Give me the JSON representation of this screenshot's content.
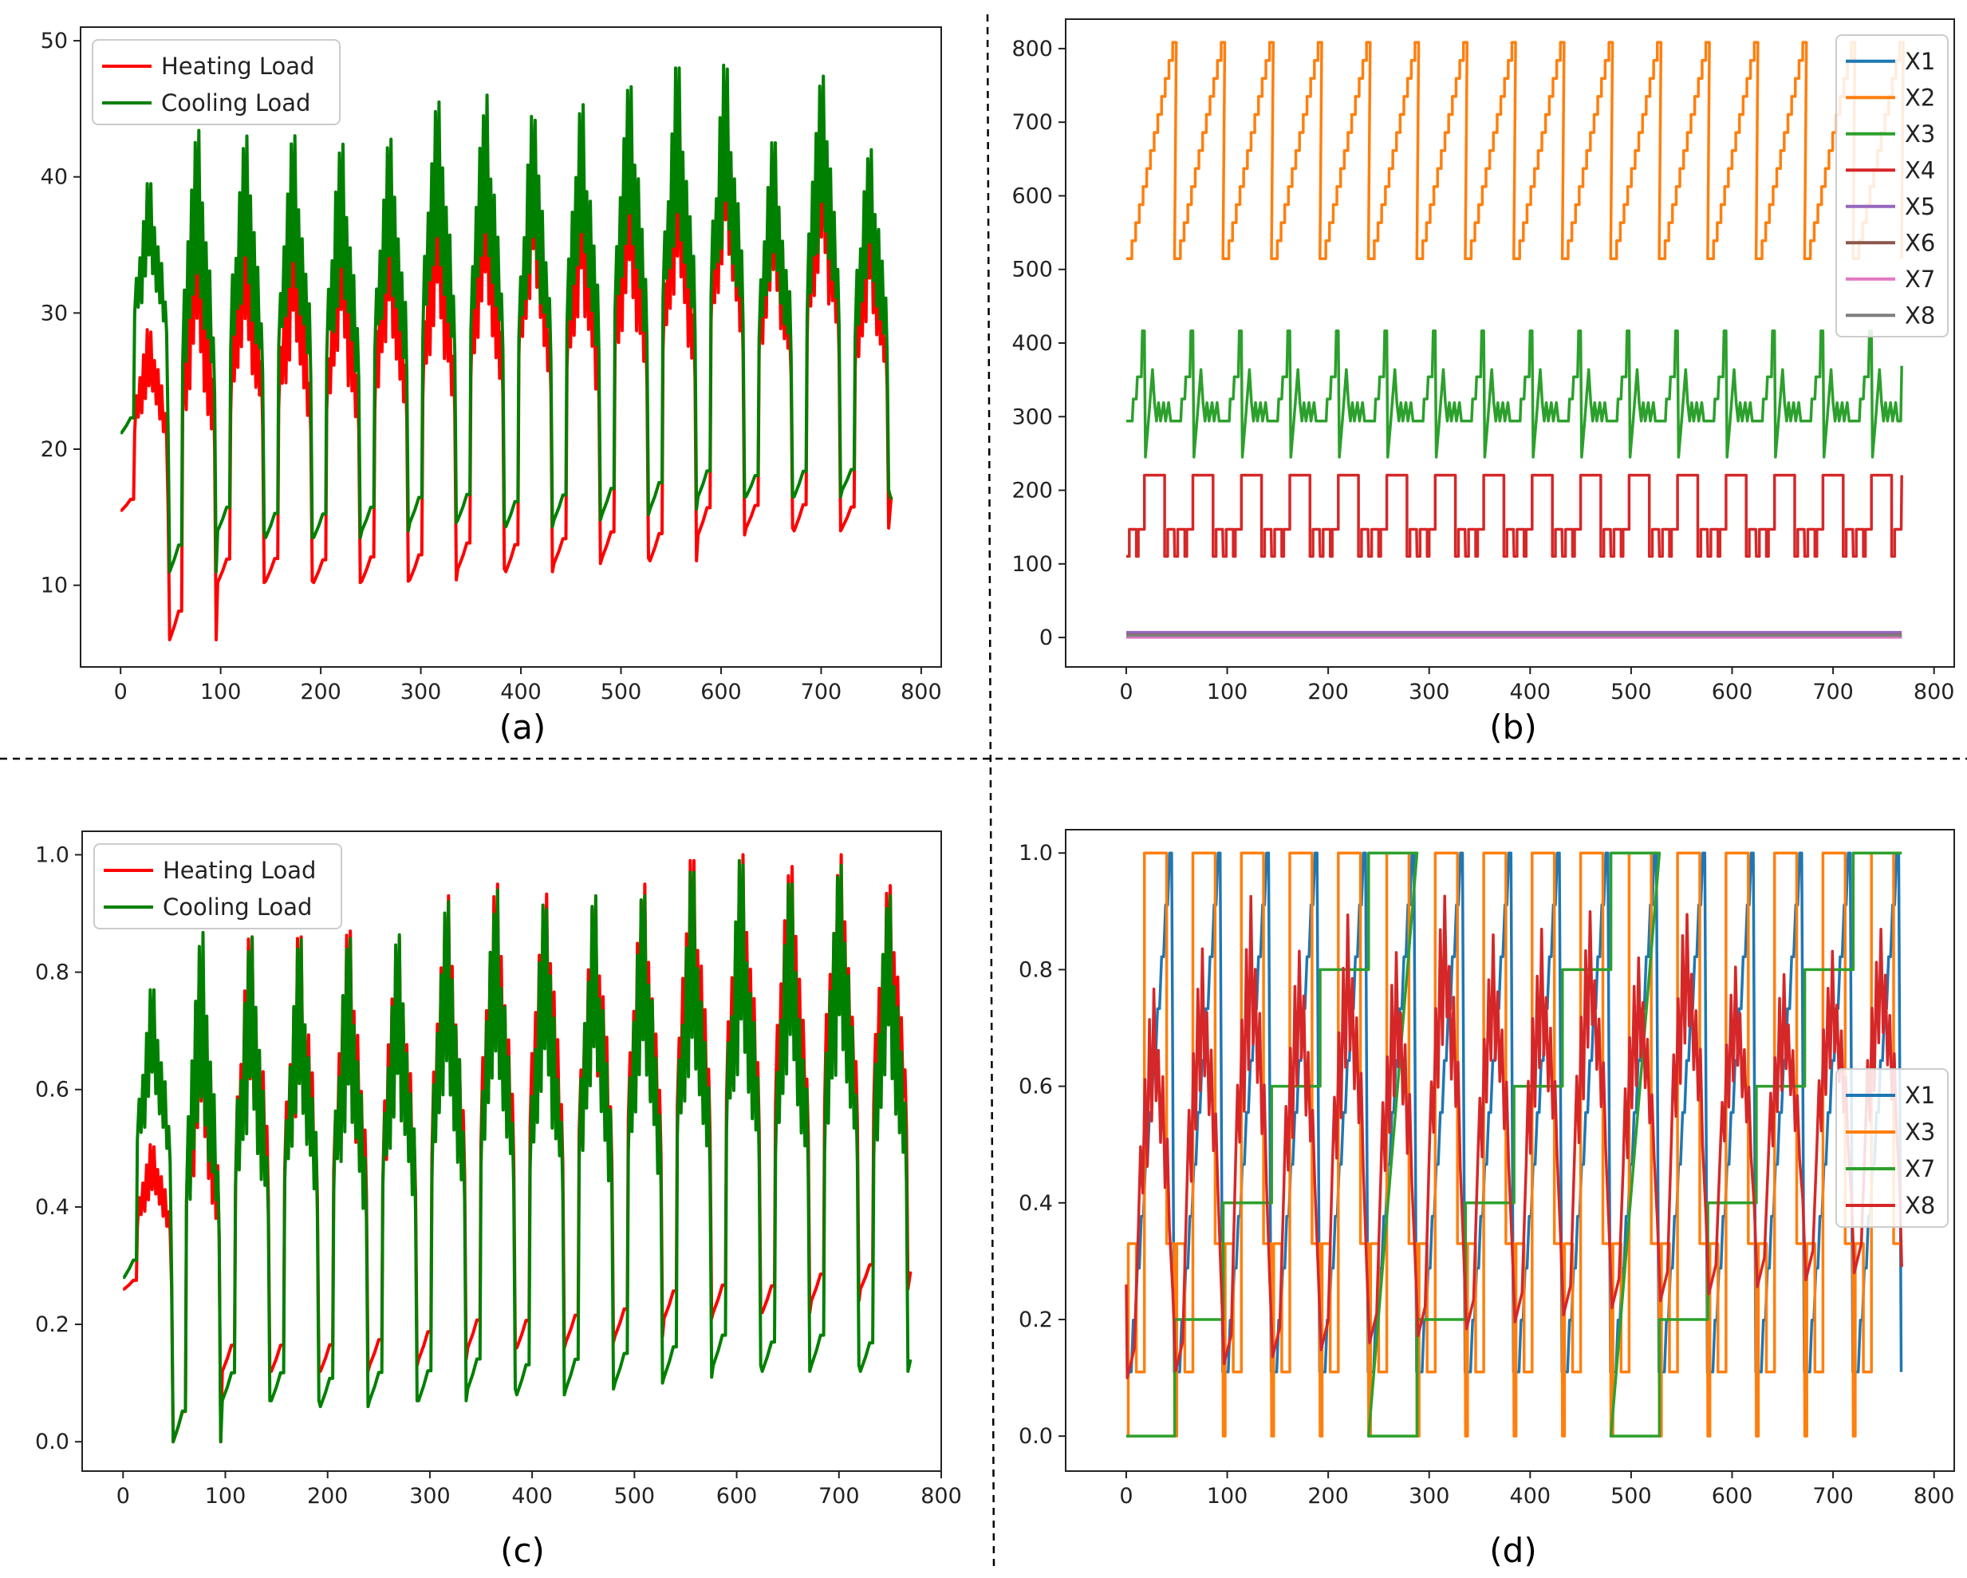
{
  "figure": {
    "captions": {
      "a": "(a)",
      "b": "(b)",
      "c": "(c)",
      "d": "(d)"
    }
  },
  "chart_data": [
    {
      "id": "a",
      "type": "line",
      "caption": "(a)",
      "xlim": [
        -40,
        820
      ],
      "ylim": [
        4,
        51
      ],
      "xticks": [
        0,
        100,
        200,
        300,
        400,
        500,
        600,
        700,
        800
      ],
      "yticks": [
        10,
        20,
        30,
        40,
        50
      ],
      "legend": "top-left",
      "cycles": 16,
      "series": [
        {
          "name": "Heating Load",
          "color": "#ff0000",
          "base": [
            15.5,
            6.0,
            10.2,
            10.3,
            10.2,
            10.3,
            10.4,
            11.2,
            11.0,
            11.6,
            12.0,
            11.8,
            13.7,
            14.2,
            14.0,
            14.2
          ],
          "peak": [
            29.0,
            41.0,
            39.0,
            38.0,
            38.0,
            40.0,
            41.0,
            43.0,
            44.0,
            42.0,
            44.0,
            45.0,
            47.0,
            42.0,
            46.0,
            40.0
          ],
          "end": 16.5
        },
        {
          "name": "Cooling Load",
          "color": "#008000",
          "base": [
            21.2,
            11.0,
            14.0,
            13.5,
            13.5,
            14.0,
            14.6,
            14.8,
            14.3,
            14.8,
            15.2,
            15.6,
            16.5,
            16.5,
            16.5,
            17.0
          ],
          "peak": [
            39.5,
            43.5,
            43.0,
            43.2,
            42.5,
            43.0,
            45.5,
            46.0,
            45.0,
            45.3,
            47.0,
            48.0,
            48.2,
            42.5,
            47.7,
            42.0
          ],
          "end": 16.3
        }
      ]
    },
    {
      "id": "b",
      "type": "line",
      "caption": "(b)",
      "xlim": [
        -60,
        820
      ],
      "ylim": [
        -40,
        840
      ],
      "xticks": [
        0,
        100,
        200,
        300,
        400,
        500,
        600,
        700,
        800
      ],
      "yticks": [
        0,
        100,
        200,
        300,
        400,
        500,
        600,
        700,
        800
      ],
      "legend": "top-right",
      "cycles": 16,
      "series": [
        {
          "name": "X1",
          "color": "#1f77b4",
          "value": 0.8
        },
        {
          "name": "X2",
          "color": "#ff7f0e",
          "min": 514.5,
          "max": 808.5,
          "shape": "sawtooth"
        },
        {
          "name": "X3",
          "color": "#2ca02c",
          "min": 245,
          "mid": 294,
          "max": 416.5,
          "shape": "spiky"
        },
        {
          "name": "X4",
          "color": "#d62728",
          "min": 110.25,
          "mid": 147,
          "max": 220.5,
          "shape": "step"
        },
        {
          "name": "X5",
          "color": "#9467bd",
          "value": 7
        },
        {
          "name": "X6",
          "color": "#8c564b",
          "value": 3.5
        },
        {
          "name": "X7",
          "color": "#e377c2",
          "value": 0.25
        },
        {
          "name": "X8",
          "color": "#7f7f7f",
          "value": 2.8
        }
      ]
    },
    {
      "id": "c",
      "type": "line",
      "caption": "(c)",
      "xlim": [
        -40,
        800
      ],
      "ylim": [
        -0.05,
        1.04
      ],
      "xticks": [
        0,
        100,
        200,
        300,
        400,
        500,
        600,
        700,
        800
      ],
      "yticks": [
        0.0,
        0.2,
        0.4,
        0.6,
        0.8,
        1.0
      ],
      "legend": "top-left",
      "cycles": 16,
      "series": [
        {
          "name": "Heating Load",
          "color": "#ff0000",
          "base": [
            0.26,
            0.0,
            0.12,
            0.12,
            0.12,
            0.13,
            0.14,
            0.16,
            0.16,
            0.17,
            0.18,
            0.21,
            0.22,
            0.22,
            0.24,
            0.26
          ],
          "peak": [
            0.51,
            0.86,
            0.86,
            0.86,
            0.87,
            0.86,
            0.93,
            0.95,
            0.94,
            0.93,
            0.95,
            0.99,
            1.0,
            0.98,
            1.0,
            0.95
          ],
          "end": 0.29
        },
        {
          "name": "Cooling Load",
          "color": "#008000",
          "base": [
            0.28,
            0.0,
            0.07,
            0.07,
            0.06,
            0.07,
            0.07,
            0.09,
            0.08,
            0.09,
            0.1,
            0.11,
            0.13,
            0.12,
            0.13,
            0.12
          ],
          "peak": [
            0.77,
            0.87,
            0.86,
            0.86,
            0.86,
            0.87,
            0.92,
            0.94,
            0.93,
            0.93,
            0.94,
            0.97,
            0.99,
            0.95,
            0.99,
            0.93
          ],
          "end": 0.14
        }
      ]
    },
    {
      "id": "d",
      "type": "line",
      "caption": "(d)",
      "xlim": [
        -60,
        820
      ],
      "ylim": [
        -0.06,
        1.04
      ],
      "xticks": [
        0,
        100,
        200,
        300,
        400,
        500,
        600,
        700,
        800
      ],
      "yticks": [
        0.0,
        0.2,
        0.4,
        0.6,
        0.8,
        1.0
      ],
      "legend": "center-right",
      "cycles": 16,
      "series": [
        {
          "name": "X1",
          "color": "#1f77b4",
          "shape": "steady-rise",
          "min": 0.0,
          "max": 1.0
        },
        {
          "name": "X3",
          "color": "#ff7f0e",
          "shape": "spike-steps",
          "levels": [
            0.0,
            0.11,
            0.33,
            1.0
          ]
        },
        {
          "name": "X7",
          "color": "#2ca02c",
          "shape": "staircase",
          "levels": [
            0.0,
            0.2,
            0.4,
            0.6,
            0.8,
            1.0
          ]
        },
        {
          "name": "X8",
          "color": "#d62728",
          "shape": "oscillating",
          "min": 0.0,
          "max": 0.96
        }
      ]
    }
  ]
}
